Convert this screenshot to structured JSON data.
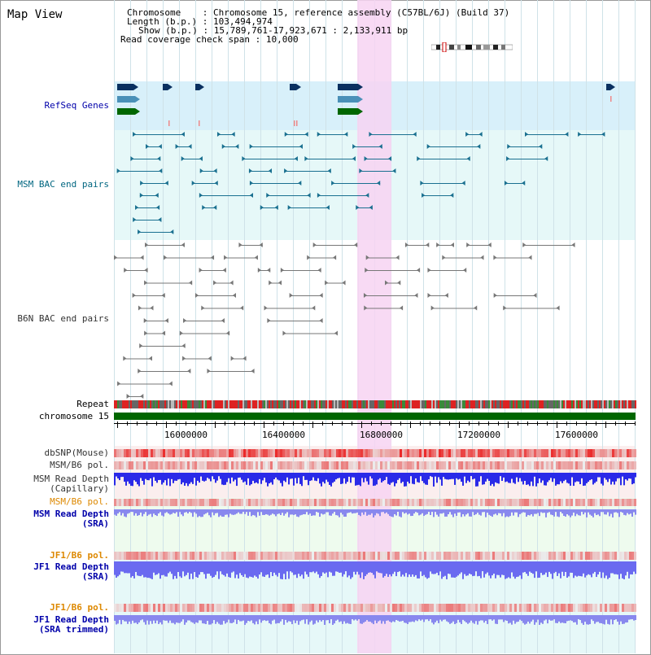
{
  "title": "Map View",
  "info": {
    "chromosome_label": "Chromosome",
    "chromosome_value": "Chromosome 15, reference assembly (C57BL/6J) (Build 37)",
    "length_label": "Length (b.p.)",
    "length_value": "103,494,974",
    "show_label": "Show (b.p.)",
    "show_value": "15,789,761-17,923,671 : 2,133,911 bp",
    "coverage_label": "Read coverage check span",
    "coverage_value": "10,000"
  },
  "tracks": {
    "refseq": "RefSeq Genes",
    "msm_bac": "MSM BAC end pairs",
    "b6n_bac": "B6N BAC end pairs",
    "repeat": "Repeat",
    "chromosome": "chromosome 15",
    "dbsnp": "dbSNP(Mouse)",
    "msm_b6_pol_1": "MSM/B6 pol.",
    "msm_depth_cap_1": "MSM Read Depth",
    "msm_depth_cap_2": "(Capillary)",
    "msm_b6_pol_2": "MSM/B6 pol.",
    "msm_depth_sra_1": "MSM Read Depth",
    "msm_depth_sra_2": "(SRA)",
    "jf1_b6_pol_1": "JF1/B6 pol.",
    "jf1_depth_sra_1": "JF1 Read Depth",
    "jf1_depth_sra_2": "(SRA)",
    "jf1_b6_pol_2": "JF1/B6 pol.",
    "jf1_depth_trim_1": "JF1 Read Depth",
    "jf1_depth_trim_2": "(SRA trimmed)"
  },
  "axis": {
    "ticks": [
      "16000000",
      "16400000",
      "16800000",
      "17200000",
      "17600000"
    ]
  },
  "colors": {
    "refseq_label": "#0000aa",
    "msm_label": "#006680",
    "pol_label": "#dd8800",
    "depth_label": "#0000aa",
    "highlight": "#f7d4f2",
    "chromosome_bar": "#006600"
  }
}
